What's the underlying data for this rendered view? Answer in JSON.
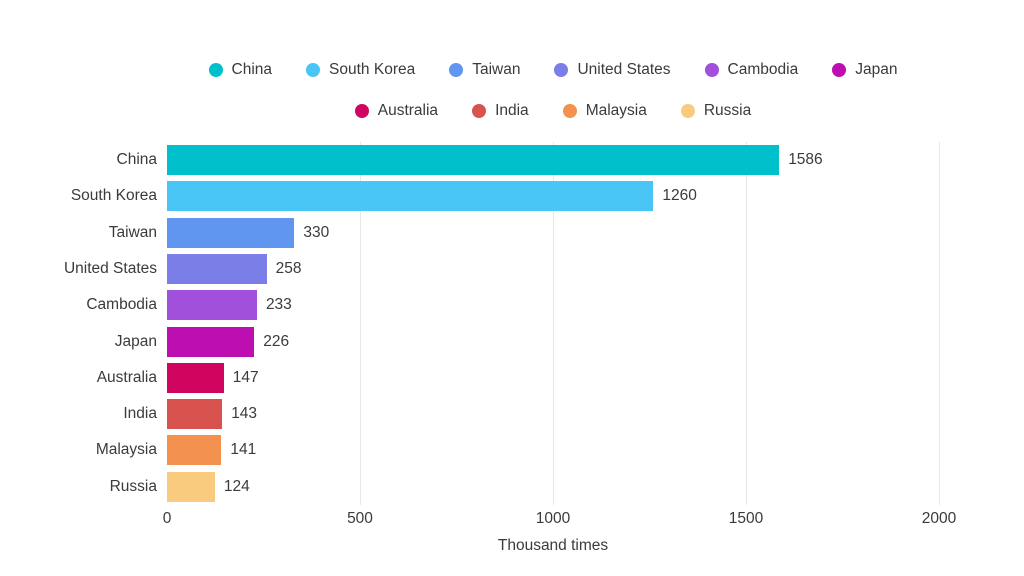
{
  "chart_data": {
    "type": "bar",
    "orientation": "horizontal",
    "title": "",
    "xlabel": "Thousand times",
    "ylabel": "",
    "categories": [
      "China",
      "South Korea",
      "Taiwan",
      "United States",
      "Cambodia",
      "Japan",
      "Australia",
      "India",
      "Malaysia",
      "Russia"
    ],
    "values": [
      1586,
      1260,
      330,
      258,
      233,
      226,
      147,
      143,
      141,
      124
    ],
    "value_labels": [
      "1586",
      "1260",
      "330",
      "258",
      "233",
      "226",
      "147",
      "143",
      "141",
      "124"
    ],
    "colors": [
      "#00C1CB",
      "#49C5F6",
      "#6095F0",
      "#7A7EE6",
      "#A050DA",
      "#BD0EB1",
      "#D00560",
      "#D9534E",
      "#F2924E",
      "#F8CB7F"
    ],
    "xlim": [
      0,
      2000
    ],
    "xticks": [
      0,
      500,
      1000,
      1500,
      2000
    ],
    "xtick_labels": [
      "0",
      "500",
      "1000",
      "1500",
      "2000"
    ],
    "grid": true,
    "legend_position": "top",
    "legend_rows": [
      [
        "China",
        "South Korea",
        "Taiwan",
        "United States",
        "Cambodia",
        "Japan"
      ],
      [
        "Australia",
        "India",
        "Malaysia",
        "Russia"
      ]
    ]
  },
  "styles": {
    "background": "#ffffff",
    "text_color": "#3b3b3b",
    "grid_color": "#e8e8e8"
  }
}
